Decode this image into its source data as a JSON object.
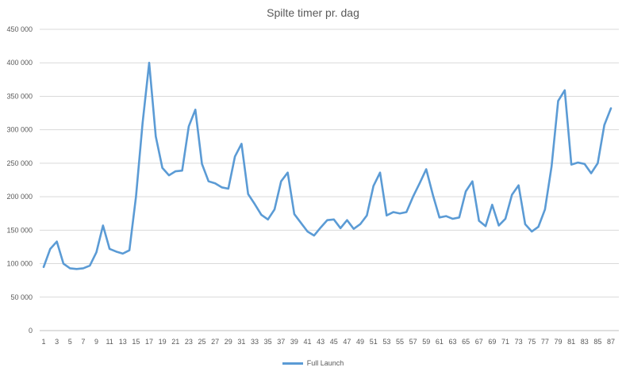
{
  "chart_data": {
    "type": "line",
    "title": "Spilte timer pr. dag",
    "xlabel": "",
    "ylabel": "",
    "ylim": [
      0,
      450000
    ],
    "yticks": [
      "0",
      "50 000",
      "100 000",
      "150 000",
      "200 000",
      "250 000",
      "300 000",
      "350 000",
      "400 000",
      "450 000"
    ],
    "grid": true,
    "legend_position": "bottom",
    "x": [
      1,
      2,
      3,
      4,
      5,
      6,
      7,
      8,
      9,
      10,
      11,
      12,
      13,
      14,
      15,
      16,
      17,
      18,
      19,
      20,
      21,
      22,
      23,
      24,
      25,
      26,
      27,
      28,
      29,
      30,
      31,
      32,
      33,
      34,
      35,
      36,
      37,
      38,
      39,
      40,
      41,
      42,
      43,
      44,
      45,
      46,
      47,
      48,
      49,
      50,
      51,
      52,
      53,
      54,
      55,
      56,
      57,
      58,
      59,
      60,
      61,
      62,
      63,
      64,
      65,
      66,
      67,
      68,
      69,
      70,
      71,
      72,
      73,
      74,
      75,
      76,
      77,
      78,
      79,
      80,
      81,
      82,
      83,
      84,
      85,
      86,
      87
    ],
    "series": [
      {
        "name": "Full Launch",
        "color": "#5b9bd5",
        "values": [
          95000,
          122000,
          133000,
          100000,
          93000,
          92000,
          93000,
          97000,
          117000,
          157000,
          122000,
          118000,
          115000,
          120000,
          200000,
          310000,
          400000,
          290000,
          243000,
          232000,
          238000,
          239000,
          305000,
          330000,
          249000,
          223000,
          220000,
          214000,
          212000,
          260000,
          279000,
          204000,
          189000,
          173000,
          166000,
          181000,
          223000,
          236000,
          174000,
          161000,
          148000,
          142000,
          154000,
          165000,
          166000,
          153000,
          165000,
          152000,
          159000,
          172000,
          216000,
          236000,
          172000,
          177000,
          175000,
          177000,
          200000,
          220000,
          241000,
          203000,
          169000,
          171000,
          167000,
          169000,
          208000,
          223000,
          164000,
          156000,
          188000,
          157000,
          167000,
          203000,
          217000,
          159000,
          148000,
          155000,
          181000,
          245000,
          343000,
          359000,
          248000,
          251000,
          249000,
          235000,
          250000,
          307000,
          332000
        ]
      }
    ]
  }
}
